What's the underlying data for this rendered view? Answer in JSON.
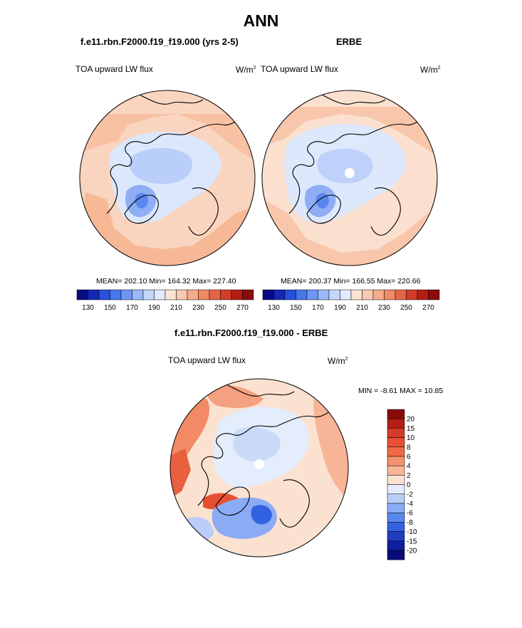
{
  "figure": {
    "title": "ANN",
    "units": "W/m",
    "units_exp": "2"
  },
  "chart_data": [
    {
      "type": "heatmap",
      "projection": "north polar stereographic",
      "case_name": "f.e11.rbn.F2000.f19_f19.000 (yrs 2-5)",
      "variable": "TOA upward LW flux",
      "stats": {
        "mean": 202.1,
        "min": 164.32,
        "max": 227.4
      },
      "stats_text": "MEAN= 202.10  Min= 164.32  Max= 227.40",
      "levels": [
        130,
        140,
        150,
        160,
        170,
        180,
        190,
        200,
        210,
        220,
        230,
        240,
        250,
        260,
        270
      ],
      "tick_labels": [
        "130",
        "150",
        "170",
        "190",
        "210",
        "230",
        "250",
        "270"
      ],
      "colors": [
        "#0a0a82",
        "#1428b4",
        "#2850dc",
        "#4678eb",
        "#6e96f5",
        "#9bb9fa",
        "#c3d7fc",
        "#e1ebfd",
        "#fbe3d4",
        "#f8c8b0",
        "#f5aa8a",
        "#f08a64",
        "#e66446",
        "#d23c28",
        "#b41e14",
        "#8c0a0a"
      ]
    },
    {
      "type": "heatmap",
      "projection": "north polar stereographic",
      "case_name": "ERBE",
      "variable": "TOA upward LW flux",
      "stats": {
        "mean": 200.37,
        "min": 166.55,
        "max": 220.66
      },
      "stats_text": "MEAN= 200.37  Min= 166.55  Max= 220.66",
      "levels": [
        130,
        140,
        150,
        160,
        170,
        180,
        190,
        200,
        210,
        220,
        230,
        240,
        250,
        260,
        270
      ],
      "tick_labels": [
        "130",
        "150",
        "170",
        "190",
        "210",
        "230",
        "250",
        "270"
      ]
    },
    {
      "type": "heatmap",
      "projection": "north polar stereographic",
      "case_name": "f.e11.rbn.F2000.f19_f19.000 - ERBE",
      "variable": "TOA upward LW flux",
      "stats": {
        "min": -8.61,
        "max": 10.85
      },
      "stats_text": "MIN =  -8.61 MAX =  10.85",
      "tick_labels": [
        "20",
        "15",
        "10",
        "8",
        "6",
        "4",
        "2",
        "0",
        "-2",
        "-4",
        "-6",
        "-8",
        "-10",
        "-15",
        "-20"
      ],
      "colors": [
        "#8c0a0a",
        "#b41e14",
        "#d23c28",
        "#e65032",
        "#f06a46",
        "#f5916e",
        "#f8b496",
        "#fbe1d0",
        "#e4edfb",
        "#b9cdf8",
        "#8cabf5",
        "#5a87ee",
        "#3262e1",
        "#1e3cc3",
        "#101ea0",
        "#0a0a78"
      ]
    }
  ]
}
